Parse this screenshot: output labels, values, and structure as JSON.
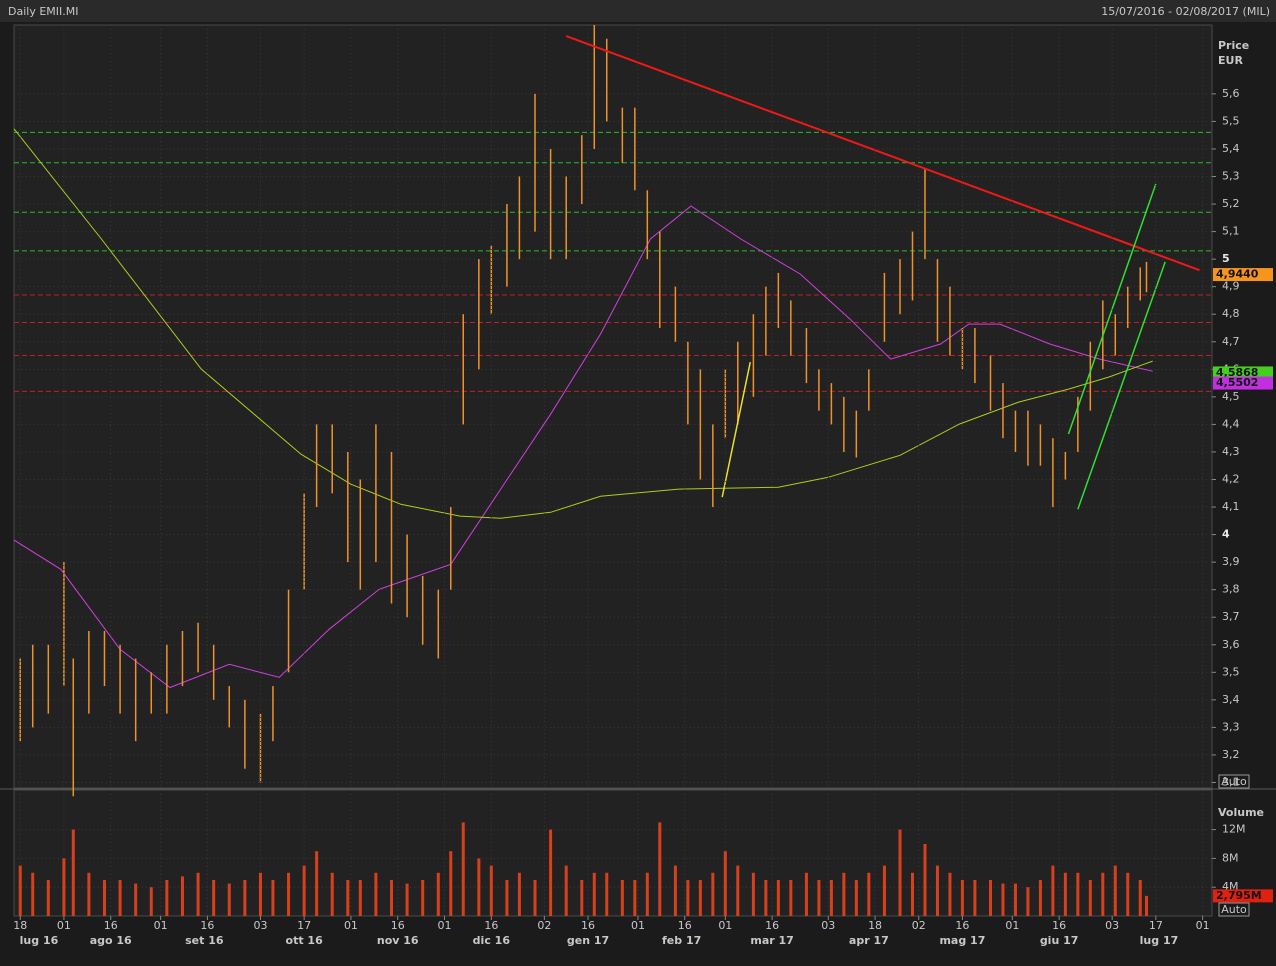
{
  "header": {
    "title": "Daily EMII.MI",
    "range": "15/07/2016 - 02/08/2017 (MIL)"
  },
  "chart_data": [
    {
      "type": "ohlc",
      "ylabel": "Price",
      "yunit": "EUR",
      "auto_button": "Auto",
      "xlim": [
        "2016-07-16",
        "2017-08-04"
      ],
      "ylim": [
        3.08,
        5.85
      ],
      "yticks": [
        {
          "value": 3.1,
          "label": "3,1"
        },
        {
          "value": 3.2,
          "label": "3,2"
        },
        {
          "value": 3.3,
          "label": "3,3"
        },
        {
          "value": 3.4,
          "label": "3,4"
        },
        {
          "value": 3.5,
          "label": "3,5"
        },
        {
          "value": 3.6,
          "label": "3,6"
        },
        {
          "value": 3.7,
          "label": "3,7"
        },
        {
          "value": 3.8,
          "label": "3,8"
        },
        {
          "value": 3.9,
          "label": "3,9"
        },
        4,
        {
          "value": 4.1,
          "label": "4,1"
        },
        {
          "value": 4.2,
          "label": "4,2"
        },
        {
          "value": 4.3,
          "label": "4,3"
        },
        {
          "value": 4.4,
          "label": "4,4"
        },
        {
          "value": 4.5,
          "label": "4,5"
        },
        {
          "value": 4.6,
          "label": "4,6"
        },
        {
          "value": 4.7,
          "label": "4,7"
        },
        {
          "value": 4.8,
          "label": "4,8"
        },
        {
          "value": 4.9,
          "label": "4,9"
        },
        5,
        {
          "value": 5.1,
          "label": "5,1"
        },
        {
          "value": 5.2,
          "label": "5,2"
        },
        {
          "value": 5.3,
          "label": "5,3"
        },
        {
          "value": 5.4,
          "label": "5,4"
        },
        {
          "value": 5.5,
          "label": "5,5"
        },
        {
          "value": 5.6,
          "label": "5,6"
        }
      ],
      "color": "#f0922a",
      "x": [
        "2016-07-18",
        "2016-07-22",
        "2016-07-27",
        "2016-08-01",
        "2016-08-04",
        "2016-08-09",
        "2016-08-14",
        "2016-08-19",
        "2016-08-24",
        "2016-08-29",
        "2016-09-03",
        "2016-09-08",
        "2016-09-13",
        "2016-09-18",
        "2016-09-23",
        "2016-09-28",
        "2016-10-03",
        "2016-10-07",
        "2016-10-12",
        "2016-10-17",
        "2016-10-21",
        "2016-10-26",
        "2016-10-31",
        "2016-11-04",
        "2016-11-09",
        "2016-11-14",
        "2016-11-19",
        "2016-11-24",
        "2016-11-29",
        "2016-12-03",
        "2016-12-07",
        "2016-12-12",
        "2016-12-16",
        "2016-12-21",
        "2016-12-25",
        "2016-12-30",
        "2017-01-04",
        "2017-01-09",
        "2017-01-14",
        "2017-01-18",
        "2017-01-22",
        "2017-01-27",
        "2017-01-31",
        "2017-02-04",
        "2017-02-08",
        "2017-02-13",
        "2017-02-17",
        "2017-02-21",
        "2017-02-25",
        "2017-03-01",
        "2017-03-05",
        "2017-03-10",
        "2017-03-14",
        "2017-03-18",
        "2017-03-22",
        "2017-03-27",
        "2017-03-31",
        "2017-04-04",
        "2017-04-08",
        "2017-04-12",
        "2017-04-16",
        "2017-04-21",
        "2017-04-26",
        "2017-04-30",
        "2017-05-04",
        "2017-05-08",
        "2017-05-12",
        "2017-05-16",
        "2017-05-20",
        "2017-05-25",
        "2017-05-29",
        "2017-06-02",
        "2017-06-06",
        "2017-06-10",
        "2017-06-14",
        "2017-06-18",
        "2017-06-22",
        "2017-06-26",
        "2017-06-30",
        "2017-07-04",
        "2017-07-08",
        "2017-07-12",
        "2017-07-14"
      ],
      "low": [
        3.25,
        3.3,
        3.35,
        3.45,
        3.05,
        3.35,
        3.45,
        3.35,
        3.25,
        3.35,
        3.35,
        3.45,
        3.5,
        3.4,
        3.3,
        3.15,
        3.1,
        3.25,
        3.5,
        3.8,
        4.1,
        4.15,
        3.9,
        3.8,
        3.9,
        3.75,
        3.7,
        3.6,
        3.55,
        3.8,
        4.4,
        4.6,
        4.8,
        4.9,
        5.0,
        5.1,
        5.0,
        5.0,
        5.2,
        5.4,
        5.5,
        5.35,
        5.25,
        5.0,
        4.75,
        4.7,
        4.4,
        4.2,
        4.1,
        4.35,
        4.4,
        4.5,
        4.65,
        4.75,
        4.65,
        4.55,
        4.45,
        4.4,
        4.3,
        4.28,
        4.45,
        4.7,
        4.8,
        4.85,
        5.0,
        4.7,
        4.65,
        4.6,
        4.55,
        4.45,
        4.35,
        4.3,
        4.25,
        4.25,
        4.1,
        4.2,
        4.3,
        4.45,
        4.6,
        4.65,
        4.75,
        4.85,
        4.88
      ],
      "high": [
        3.55,
        3.6,
        3.6,
        3.9,
        3.55,
        3.65,
        3.65,
        3.6,
        3.55,
        3.5,
        3.6,
        3.65,
        3.68,
        3.6,
        3.45,
        3.4,
        3.35,
        3.45,
        3.8,
        4.15,
        4.4,
        4.4,
        4.3,
        4.2,
        4.4,
        4.3,
        4.0,
        3.85,
        3.8,
        4.1,
        4.8,
        5.0,
        5.05,
        5.2,
        5.3,
        5.6,
        5.4,
        5.3,
        5.45,
        5.85,
        5.8,
        5.55,
        5.55,
        5.25,
        5.1,
        4.9,
        4.7,
        4.6,
        4.4,
        4.6,
        4.7,
        4.8,
        4.9,
        4.95,
        4.85,
        4.75,
        4.6,
        4.55,
        4.5,
        4.45,
        4.6,
        4.95,
        5.0,
        5.1,
        5.33,
        5.0,
        4.9,
        4.75,
        4.75,
        4.65,
        4.55,
        4.45,
        4.45,
        4.4,
        4.35,
        4.3,
        4.5,
        4.7,
        4.85,
        4.8,
        4.9,
        4.97,
        4.99
      ],
      "moving_averages": [
        {
          "color": "#d040e0",
          "x": [
            "2016-07-16",
            "2016-07-31",
            "2016-08-19",
            "2016-09-04",
            "2016-09-23",
            "2016-10-09",
            "2016-10-25",
            "2016-11-10",
            "2016-12-03",
            "2016-12-19",
            "2017-01-04",
            "2017-01-20",
            "2017-02-05",
            "2017-02-18",
            "2017-03-06",
            "2017-03-25",
            "2017-04-10",
            "2017-04-23",
            "2017-05-09",
            "2017-05-18",
            "2017-05-28",
            "2017-06-13",
            "2017-06-29",
            "2017-07-16"
          ],
          "values": [
            3.98,
            3.874,
            3.583,
            3.445,
            3.529,
            3.482,
            3.656,
            3.801,
            3.892,
            4.165,
            4.437,
            4.728,
            5.073,
            5.193,
            5.073,
            4.946,
            4.782,
            4.637,
            4.692,
            4.764,
            4.764,
            4.692,
            4.637,
            4.593
          ]
        },
        {
          "color": "#a8d020",
          "x": [
            "2016-07-16",
            "2016-08-13",
            "2016-09-14",
            "2016-10-16",
            "2016-11-01",
            "2016-11-17",
            "2016-12-06",
            "2016-12-19",
            "2017-01-04",
            "2017-01-20",
            "2017-02-14",
            "2017-03-18",
            "2017-04-03",
            "2017-04-26",
            "2017-05-15",
            "2017-06-03",
            "2017-06-19",
            "2017-07-02",
            "2017-07-16"
          ],
          "values": [
            5.473,
            5.073,
            4.601,
            4.292,
            4.183,
            4.11,
            4.067,
            4.059,
            4.081,
            4.139,
            4.165,
            4.172,
            4.208,
            4.288,
            4.401,
            4.481,
            4.528,
            4.572,
            4.63
          ]
        }
      ],
      "levels": [
        {
          "color": "#22c022",
          "values": [
            5.46,
            5.35,
            5.17,
            5.03
          ]
        },
        {
          "color": "#c02020",
          "values": [
            4.87,
            4.77,
            4.65,
            4.52
          ]
        }
      ],
      "trendlines": [
        {
          "color": "#f01818",
          "x": [
            "2017-01-09",
            "2017-07-31"
          ],
          "y": [
            5.81,
            4.96
          ]
        },
        {
          "color": "#30e030",
          "x": [
            "2017-06-19",
            "2017-07-17"
          ],
          "y": [
            4.365,
            5.273
          ]
        },
        {
          "color": "#30e030",
          "x": [
            "2017-06-22",
            "2017-07-20"
          ],
          "y": [
            4.092,
            4.99
          ]
        },
        {
          "color": "#e8e030",
          "x": [
            "2017-02-28",
            "2017-03-09"
          ],
          "y": [
            4.136,
            4.626
          ]
        }
      ],
      "price_tags": [
        {
          "value": 4.944,
          "label": "4,9440",
          "color": "#f7941d"
        },
        {
          "value": 4.5868,
          "label": "4,5868",
          "color": "#44d020"
        },
        {
          "value": 4.5502,
          "label": "4,5502",
          "color": "#c030e0"
        }
      ]
    },
    {
      "type": "bar",
      "ylabel": "Volume",
      "auto_button": "Auto",
      "xlim": [
        "2016-07-16",
        "2017-08-04"
      ],
      "ylim": [
        0,
        17.5
      ],
      "yticks": [
        {
          "value": 4,
          "label": "4M"
        },
        {
          "value": 8,
          "label": "8M"
        },
        {
          "value": 12,
          "label": "12M"
        }
      ],
      "color": "#d8401c",
      "x": [
        "2016-07-18",
        "2016-07-22",
        "2016-07-27",
        "2016-08-01",
        "2016-08-04",
        "2016-08-09",
        "2016-08-14",
        "2016-08-19",
        "2016-08-24",
        "2016-08-29",
        "2016-09-03",
        "2016-09-08",
        "2016-09-13",
        "2016-09-18",
        "2016-09-23",
        "2016-09-28",
        "2016-10-03",
        "2016-10-07",
        "2016-10-12",
        "2016-10-17",
        "2016-10-21",
        "2016-10-26",
        "2016-10-31",
        "2016-11-04",
        "2016-11-09",
        "2016-11-14",
        "2016-11-19",
        "2016-11-24",
        "2016-11-29",
        "2016-12-03",
        "2016-12-07",
        "2016-12-12",
        "2016-12-16",
        "2016-12-21",
        "2016-12-25",
        "2016-12-30",
        "2017-01-04",
        "2017-01-09",
        "2017-01-14",
        "2017-01-18",
        "2017-01-22",
        "2017-01-27",
        "2017-01-31",
        "2017-02-04",
        "2017-02-08",
        "2017-02-13",
        "2017-02-17",
        "2017-02-21",
        "2017-02-25",
        "2017-03-01",
        "2017-03-05",
        "2017-03-10",
        "2017-03-14",
        "2017-03-18",
        "2017-03-22",
        "2017-03-27",
        "2017-03-31",
        "2017-04-04",
        "2017-04-08",
        "2017-04-12",
        "2017-04-16",
        "2017-04-21",
        "2017-04-26",
        "2017-04-30",
        "2017-05-04",
        "2017-05-08",
        "2017-05-12",
        "2017-05-16",
        "2017-05-20",
        "2017-05-25",
        "2017-05-29",
        "2017-06-02",
        "2017-06-06",
        "2017-06-10",
        "2017-06-14",
        "2017-06-18",
        "2017-06-22",
        "2017-06-26",
        "2017-06-30",
        "2017-07-04",
        "2017-07-08",
        "2017-07-12",
        "2017-07-14"
      ],
      "values": [
        7,
        6,
        5,
        8,
        12,
        6,
        5,
        5,
        4.5,
        4,
        5,
        5.5,
        6,
        5,
        4.5,
        5,
        6,
        5,
        6,
        7,
        9,
        6,
        5,
        5,
        6,
        5,
        4.5,
        5,
        6,
        9,
        13,
        8,
        7,
        5,
        6,
        5,
        12,
        7,
        5,
        6,
        6,
        5,
        5,
        6,
        13,
        7,
        5,
        5,
        6,
        9,
        7,
        6,
        5,
        5,
        5,
        6,
        5,
        5,
        6,
        5,
        6,
        7,
        12,
        6,
        10,
        7,
        6,
        5,
        5,
        5,
        4.5,
        4.5,
        4,
        5,
        7,
        6,
        6,
        5,
        6,
        7,
        6,
        5,
        2.795
      ],
      "price_tags": [
        {
          "value": 2.795,
          "label": "2,795M",
          "color": "#e02010"
        }
      ],
      "xticks": [
        {
          "value": "2016-07-18",
          "label": "18"
        },
        {
          "value": "2016-08-01",
          "label": "01"
        },
        {
          "value": "2016-08-16",
          "label": "16"
        },
        {
          "value": "2016-09-01",
          "label": "01"
        },
        {
          "value": "2016-09-16",
          "label": "16"
        },
        {
          "value": "2016-10-03",
          "label": "03"
        },
        {
          "value": "2016-10-17",
          "label": "17"
        },
        {
          "value": "2016-11-01",
          "label": "01"
        },
        {
          "value": "2016-11-16",
          "label": "16"
        },
        {
          "value": "2016-12-01",
          "label": "01"
        },
        {
          "value": "2016-12-16",
          "label": "16"
        },
        {
          "value": "2017-01-02",
          "label": "02"
        },
        {
          "value": "2017-01-16",
          "label": "16"
        },
        {
          "value": "2017-02-01",
          "label": "01"
        },
        {
          "value": "2017-02-16",
          "label": "16"
        },
        {
          "value": "2017-03-01",
          "label": "01"
        },
        {
          "value": "2017-03-16",
          "label": "16"
        },
        {
          "value": "2017-04-03",
          "label": "03"
        },
        {
          "value": "2017-04-18",
          "label": "18"
        },
        {
          "value": "2017-05-02",
          "label": "02"
        },
        {
          "value": "2017-05-16",
          "label": "16"
        },
        {
          "value": "2017-06-01",
          "label": "01"
        },
        {
          "value": "2017-06-16",
          "label": "16"
        },
        {
          "value": "2017-07-03",
          "label": "03"
        },
        {
          "value": "2017-07-17",
          "label": "17"
        },
        {
          "value": "2017-08-01",
          "label": "01"
        }
      ],
      "month_labels": [
        {
          "value": "2016-07-24",
          "label": "lug 16"
        },
        {
          "value": "2016-08-16",
          "label": "ago 16"
        },
        {
          "value": "2016-09-15",
          "label": "set 16"
        },
        {
          "value": "2016-10-17",
          "label": "ott 16"
        },
        {
          "value": "2016-11-16",
          "label": "nov 16"
        },
        {
          "value": "2016-12-16",
          "label": "dic 16"
        },
        {
          "value": "2017-01-16",
          "label": "gen 17"
        },
        {
          "value": "2017-02-15",
          "label": "feb 17"
        },
        {
          "value": "2017-03-16",
          "label": "mar 17"
        },
        {
          "value": "2017-04-16",
          "label": "apr 17"
        },
        {
          "value": "2017-05-16",
          "label": "mag 17"
        },
        {
          "value": "2017-06-16",
          "label": "giu 17"
        },
        {
          "value": "2017-07-18",
          "label": "lug 17"
        }
      ]
    }
  ]
}
